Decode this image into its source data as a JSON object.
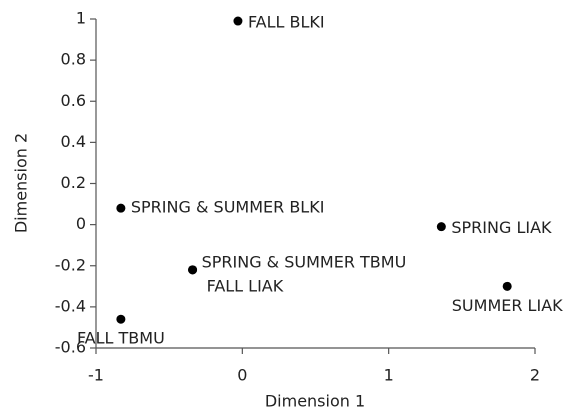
{
  "chart_data": {
    "type": "scatter",
    "x_label": "Dimension 1",
    "y_label": "Dimension 2",
    "points": {
      "labels": [
        "FALL BLKI",
        "SPRING & SUMMER BLKI",
        "SPRING LIAK",
        "SPRING & SUMMER TBMU",
        "FALL LIAK",
        "SUMMER LIAK",
        "FALL TBMU"
      ],
      "x": [
        -0.03,
        -0.83,
        1.36,
        -0.34,
        -0.34,
        1.81,
        -0.83
      ],
      "y": [
        0.99,
        0.08,
        -0.01,
        -0.22,
        -0.22,
        -0.3,
        -0.46
      ]
    },
    "color": "#000000",
    "xlim": [
      -1,
      2
    ],
    "xticks": [
      -1,
      0,
      1,
      2
    ],
    "ylim": [
      -0.6,
      1
    ],
    "yticks": [
      -0.6,
      -0.4,
      -0.2,
      0,
      0.2,
      0.4,
      0.6,
      0.8,
      1
    ],
    "grid": false
  }
}
